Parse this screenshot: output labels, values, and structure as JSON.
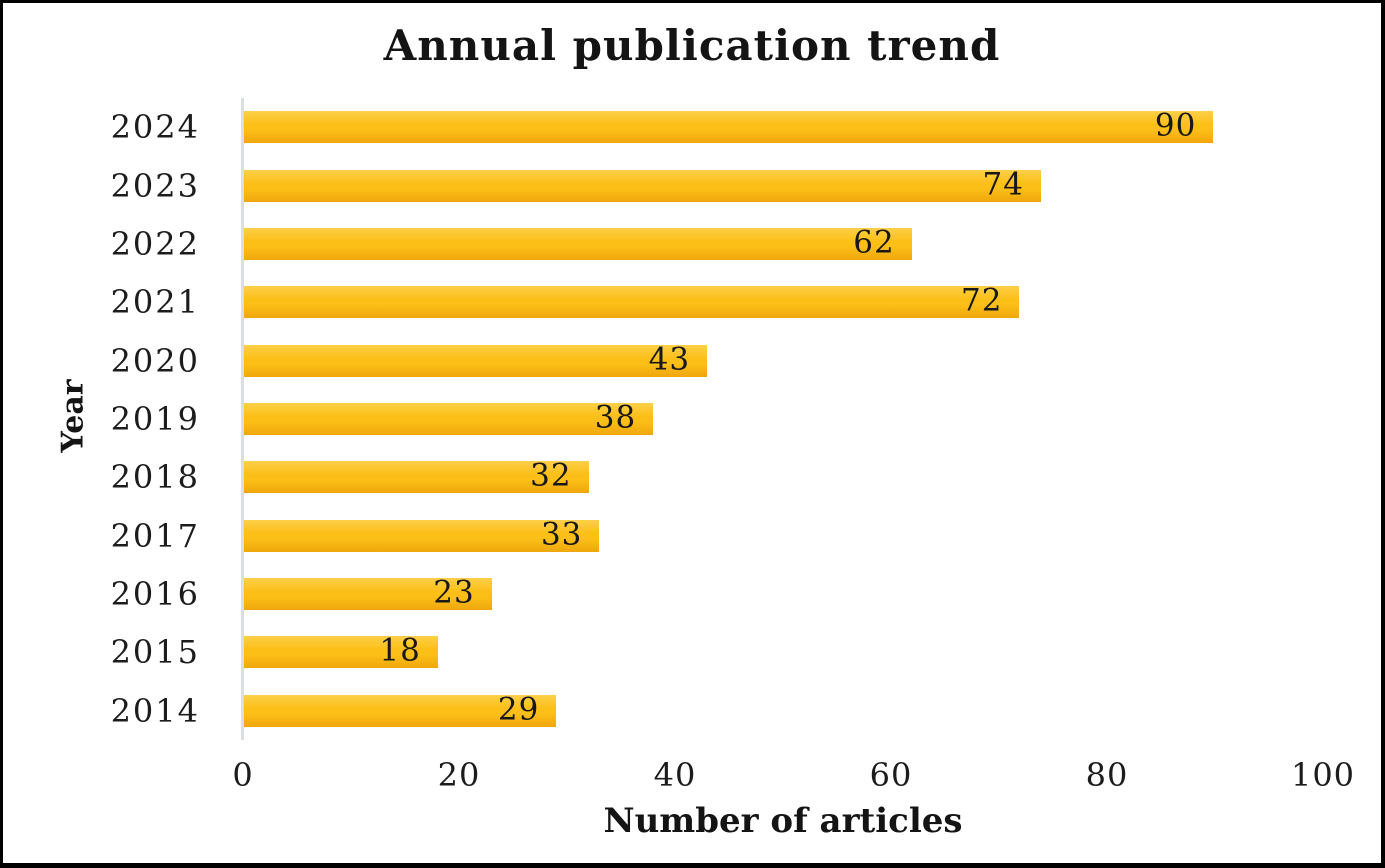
{
  "chart_data": {
    "type": "bar",
    "orientation": "horizontal",
    "title": "Annual publication trend",
    "xlabel": "Number of articles",
    "ylabel": "Year",
    "categories": [
      "2024",
      "2023",
      "2022",
      "2021",
      "2020",
      "2019",
      "2018",
      "2017",
      "2016",
      "2015",
      "2014"
    ],
    "values": [
      90,
      74,
      62,
      72,
      43,
      38,
      32,
      33,
      23,
      18,
      29
    ],
    "xlim": [
      0,
      100
    ],
    "xticks": [
      0,
      20,
      40,
      60,
      80,
      100
    ],
    "grid": false,
    "legend": false,
    "data_label_position": "inside-end",
    "colors": {
      "bar_top": "#fdd04a",
      "bar_mid": "#fbbf17",
      "bar_bottom": "#efa60d",
      "text": "#1c1c1c",
      "axis_line": "#dbdee4",
      "frame_border": "#010101",
      "background": "#ffffff"
    }
  }
}
